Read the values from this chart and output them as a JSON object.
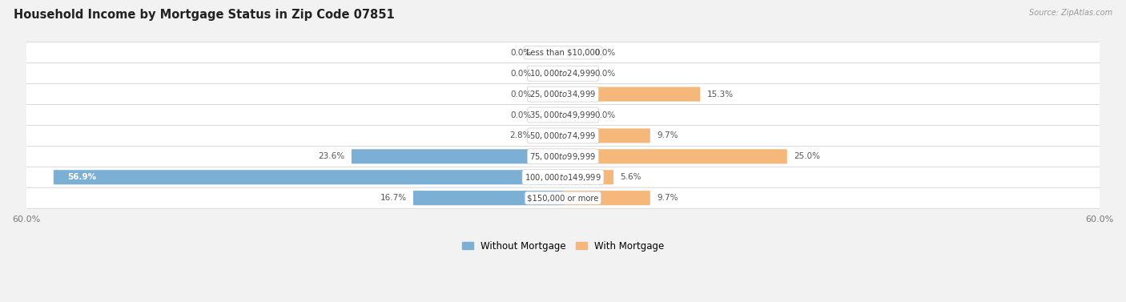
{
  "title": "Household Income by Mortgage Status in Zip Code 07851",
  "source": "Source: ZipAtlas.com",
  "categories": [
    "Less than $10,000",
    "$10,000 to $24,999",
    "$25,000 to $34,999",
    "$35,000 to $49,999",
    "$50,000 to $74,999",
    "$75,000 to $99,999",
    "$100,000 to $149,999",
    "$150,000 or more"
  ],
  "without_mortgage": [
    0.0,
    0.0,
    0.0,
    0.0,
    2.8,
    23.6,
    56.9,
    16.7
  ],
  "with_mortgage": [
    0.0,
    0.0,
    15.3,
    0.0,
    9.7,
    25.0,
    5.6,
    9.7
  ],
  "color_without": "#7bafd4",
  "color_with": "#f5b87a",
  "bg_color": "#f2f2f2",
  "row_bg_color": "#e8e8e8",
  "axis_limit": 60.0,
  "legend_label_without": "Without Mortgage",
  "legend_label_with": "With Mortgage",
  "bar_height": 0.62,
  "row_padding": 0.12
}
